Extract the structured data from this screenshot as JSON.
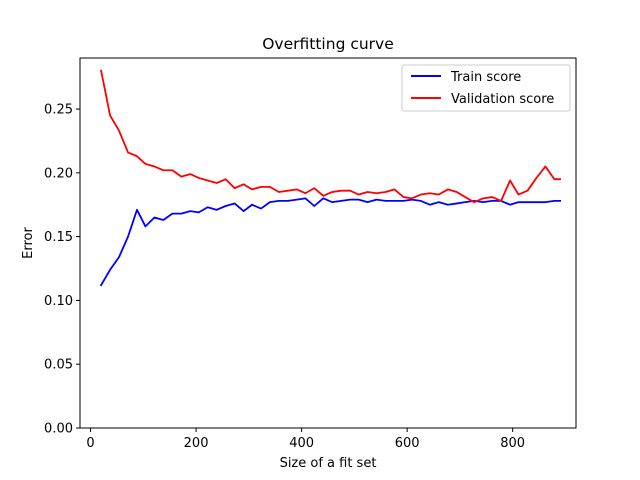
{
  "chart_data": {
    "type": "line",
    "title": "Overfitting curve",
    "xlabel": "Size of a fit set",
    "ylabel": "Error",
    "xlim": [
      -20,
      920
    ],
    "ylim": [
      0.0,
      0.29
    ],
    "xticks": [
      0,
      200,
      400,
      600,
      800
    ],
    "yticks": [
      0.0,
      0.05,
      0.1,
      0.15,
      0.2,
      0.25
    ],
    "ytick_labels": [
      "0.00",
      "0.05",
      "0.10",
      "0.15",
      "0.20",
      "0.25"
    ],
    "grid": false,
    "legend_position": "top-right",
    "x": [
      20,
      37,
      54,
      71,
      88,
      104,
      121,
      138,
      155,
      172,
      189,
      205,
      222,
      239,
      256,
      273,
      290,
      306,
      323,
      340,
      357,
      374,
      391,
      407,
      424,
      441,
      458,
      475,
      492,
      508,
      525,
      542,
      559,
      576,
      593,
      609,
      626,
      643,
      660,
      677,
      694,
      710,
      727,
      744,
      761,
      778,
      795,
      811,
      828,
      845,
      862,
      879,
      890
    ],
    "series": [
      {
        "name": "Train score",
        "color": "#0000ff",
        "values": [
          0.112,
          0.124,
          0.134,
          0.15,
          0.171,
          0.158,
          0.165,
          0.163,
          0.168,
          0.168,
          0.17,
          0.169,
          0.173,
          0.171,
          0.174,
          0.176,
          0.17,
          0.175,
          0.172,
          0.177,
          0.178,
          0.178,
          0.179,
          0.18,
          0.174,
          0.18,
          0.177,
          0.178,
          0.179,
          0.179,
          0.177,
          0.179,
          0.178,
          0.178,
          0.178,
          0.179,
          0.178,
          0.175,
          0.177,
          0.175,
          0.176,
          0.177,
          0.178,
          0.177,
          0.178,
          0.178,
          0.175,
          0.177,
          0.177,
          0.177,
          0.177,
          0.178,
          0.178
        ]
      },
      {
        "name": "Validation score",
        "color": "#ff0000",
        "values": [
          0.28,
          0.245,
          0.233,
          0.216,
          0.213,
          0.207,
          0.205,
          0.202,
          0.202,
          0.197,
          0.199,
          0.196,
          0.194,
          0.192,
          0.195,
          0.188,
          0.191,
          0.187,
          0.189,
          0.189,
          0.185,
          0.186,
          0.187,
          0.184,
          0.188,
          0.182,
          0.185,
          0.186,
          0.186,
          0.183,
          0.185,
          0.184,
          0.185,
          0.187,
          0.181,
          0.18,
          0.183,
          0.184,
          0.183,
          0.187,
          0.185,
          0.181,
          0.177,
          0.18,
          0.181,
          0.178,
          0.194,
          0.183,
          0.186,
          0.196,
          0.205,
          0.195,
          0.195
        ]
      }
    ]
  }
}
